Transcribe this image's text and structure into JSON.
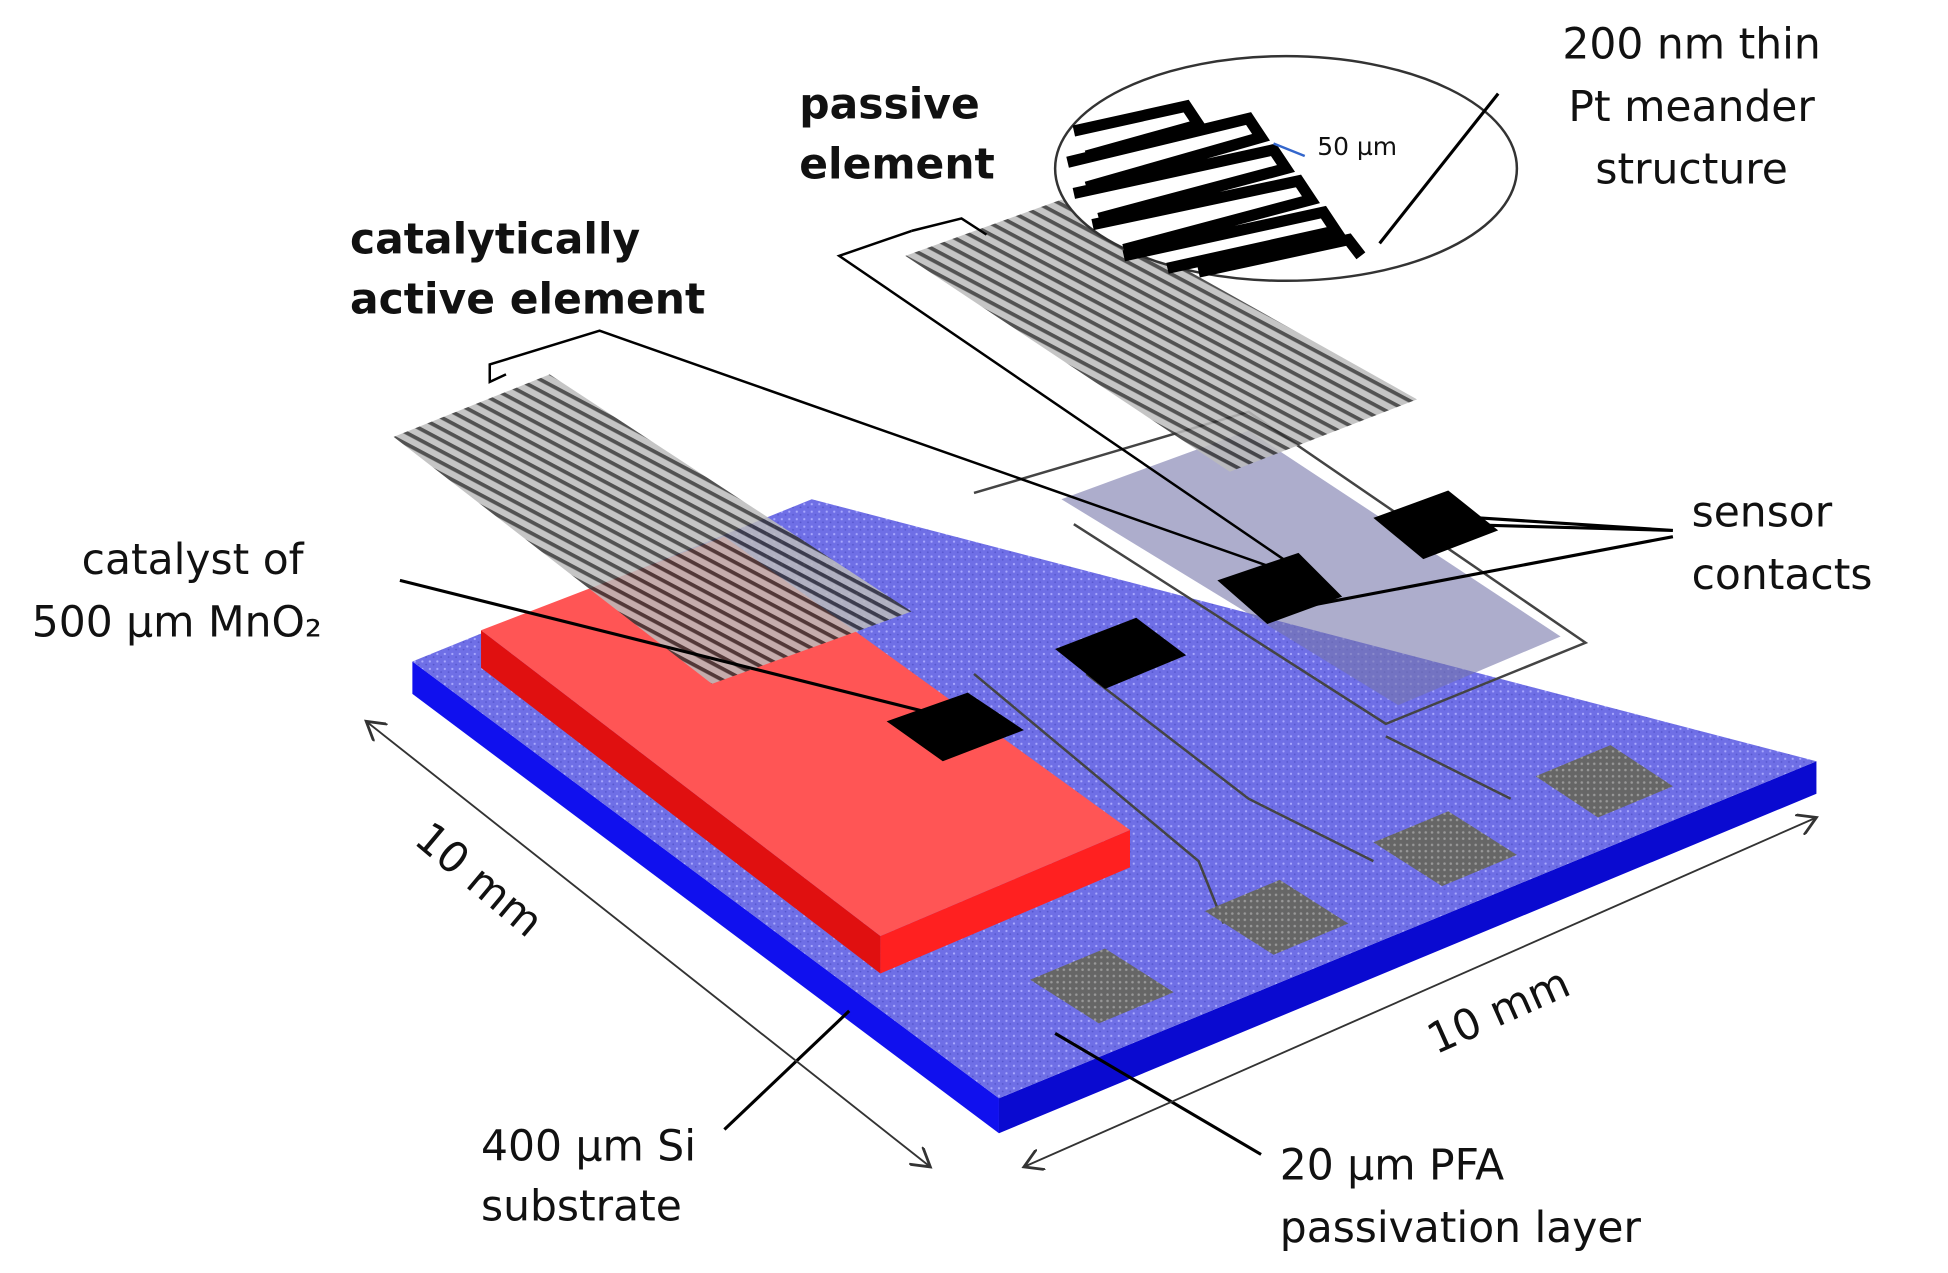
{
  "labels": {
    "meander": [
      "200 nm thin",
      "Pt meander",
      "structure"
    ],
    "passive": [
      "passive",
      "element"
    ],
    "width": "50 µm",
    "active": [
      "catalytically",
      "active element"
    ],
    "catalyst": [
      "catalyst of",
      "500 µm MnO₂"
    ],
    "contacts": [
      "sensor",
      "contacts"
    ],
    "size_left": "10 mm",
    "size_right": "10 mm",
    "substrate": [
      "400 µm Si",
      "substrate"
    ],
    "passivation": [
      "20 µm PFA",
      "passivation layer"
    ]
  }
}
